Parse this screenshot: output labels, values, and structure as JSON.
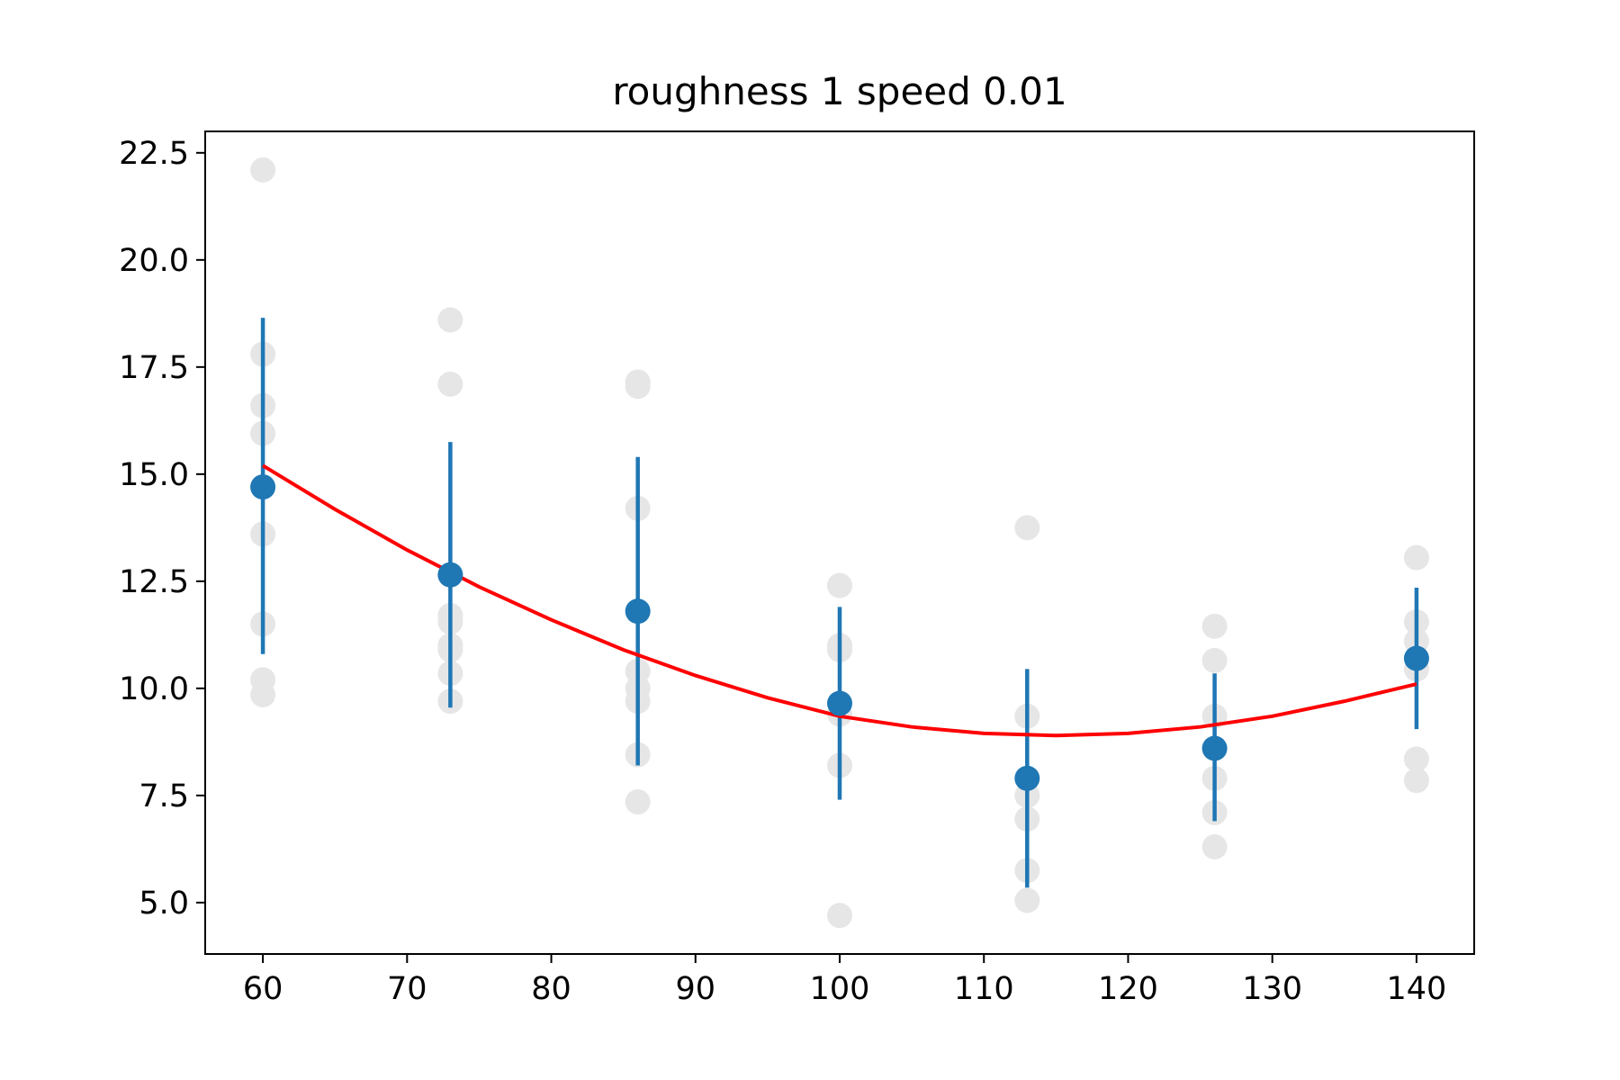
{
  "chart_data": {
    "type": "scatter",
    "title": "roughness 1 speed 0.01",
    "xlabel": "",
    "ylabel": "",
    "xlim": [
      56,
      144
    ],
    "ylim": [
      3.8,
      23.0
    ],
    "x_ticks": [
      60,
      70,
      80,
      90,
      100,
      110,
      120,
      130,
      140
    ],
    "x_tick_labels": [
      "60",
      "70",
      "80",
      "90",
      "100",
      "110",
      "120",
      "130",
      "140"
    ],
    "y_ticks": [
      5.0,
      7.5,
      10.0,
      12.5,
      15.0,
      17.5,
      20.0,
      22.5
    ],
    "y_tick_labels": [
      "5.0",
      "7.5",
      "10.0",
      "12.5",
      "15.0",
      "17.5",
      "20.0",
      "22.5"
    ],
    "grid": false,
    "colors": {
      "raw": "#e6e6e6",
      "mean": "#1f77b4",
      "fit": "#ff0000"
    },
    "raw_points": [
      {
        "x": 60,
        "y": 22.1
      },
      {
        "x": 60,
        "y": 17.8
      },
      {
        "x": 60,
        "y": 16.6
      },
      {
        "x": 60,
        "y": 15.95
      },
      {
        "x": 60,
        "y": 13.6
      },
      {
        "x": 60,
        "y": 11.5
      },
      {
        "x": 60,
        "y": 10.2
      },
      {
        "x": 60,
        "y": 9.85
      },
      {
        "x": 73,
        "y": 18.6
      },
      {
        "x": 73,
        "y": 17.1
      },
      {
        "x": 73,
        "y": 11.7
      },
      {
        "x": 73,
        "y": 11.55
      },
      {
        "x": 73,
        "y": 11.0
      },
      {
        "x": 73,
        "y": 10.9
      },
      {
        "x": 73,
        "y": 10.35
      },
      {
        "x": 73,
        "y": 9.7
      },
      {
        "x": 86,
        "y": 17.15
      },
      {
        "x": 86,
        "y": 17.05
      },
      {
        "x": 86,
        "y": 14.2
      },
      {
        "x": 86,
        "y": 10.4
      },
      {
        "x": 86,
        "y": 10.0
      },
      {
        "x": 86,
        "y": 9.7
      },
      {
        "x": 86,
        "y": 8.45
      },
      {
        "x": 86,
        "y": 7.35
      },
      {
        "x": 100,
        "y": 12.4
      },
      {
        "x": 100,
        "y": 11.0
      },
      {
        "x": 100,
        "y": 10.9
      },
      {
        "x": 100,
        "y": 9.4
      },
      {
        "x": 100,
        "y": 8.2
      },
      {
        "x": 100,
        "y": 4.7
      },
      {
        "x": 113,
        "y": 13.75
      },
      {
        "x": 113,
        "y": 9.35
      },
      {
        "x": 113,
        "y": 7.5
      },
      {
        "x": 113,
        "y": 6.95
      },
      {
        "x": 113,
        "y": 5.75
      },
      {
        "x": 113,
        "y": 5.05
      },
      {
        "x": 126,
        "y": 11.45
      },
      {
        "x": 126,
        "y": 10.65
      },
      {
        "x": 126,
        "y": 9.35
      },
      {
        "x": 126,
        "y": 7.9
      },
      {
        "x": 126,
        "y": 7.1
      },
      {
        "x": 126,
        "y": 6.3
      },
      {
        "x": 140,
        "y": 13.05
      },
      {
        "x": 140,
        "y": 11.55
      },
      {
        "x": 140,
        "y": 11.1
      },
      {
        "x": 140,
        "y": 10.45
      },
      {
        "x": 140,
        "y": 8.35
      },
      {
        "x": 140,
        "y": 7.85
      }
    ],
    "means": [
      {
        "x": 60,
        "y": 14.7,
        "yerr_low": 10.8,
        "yerr_high": 18.65
      },
      {
        "x": 73,
        "y": 12.65,
        "yerr_low": 9.55,
        "yerr_high": 15.75
      },
      {
        "x": 86,
        "y": 11.8,
        "yerr_low": 8.2,
        "yerr_high": 15.4
      },
      {
        "x": 100,
        "y": 9.65,
        "yerr_low": 7.4,
        "yerr_high": 11.9
      },
      {
        "x": 113,
        "y": 7.9,
        "yerr_low": 5.35,
        "yerr_high": 10.45
      },
      {
        "x": 126,
        "y": 8.6,
        "yerr_low": 6.9,
        "yerr_high": 10.35
      },
      {
        "x": 140,
        "y": 10.7,
        "yerr_low": 9.05,
        "yerr_high": 12.35
      }
    ],
    "fit_curve": {
      "x": [
        60,
        65,
        70,
        75,
        80,
        85,
        90,
        95,
        100,
        105,
        110,
        115,
        120,
        125,
        130,
        135,
        140
      ],
      "y": [
        15.2,
        14.18,
        13.23,
        12.37,
        11.6,
        10.9,
        10.3,
        9.78,
        9.35,
        9.1,
        8.95,
        8.9,
        8.95,
        9.1,
        9.35,
        9.7,
        10.1
      ]
    }
  }
}
